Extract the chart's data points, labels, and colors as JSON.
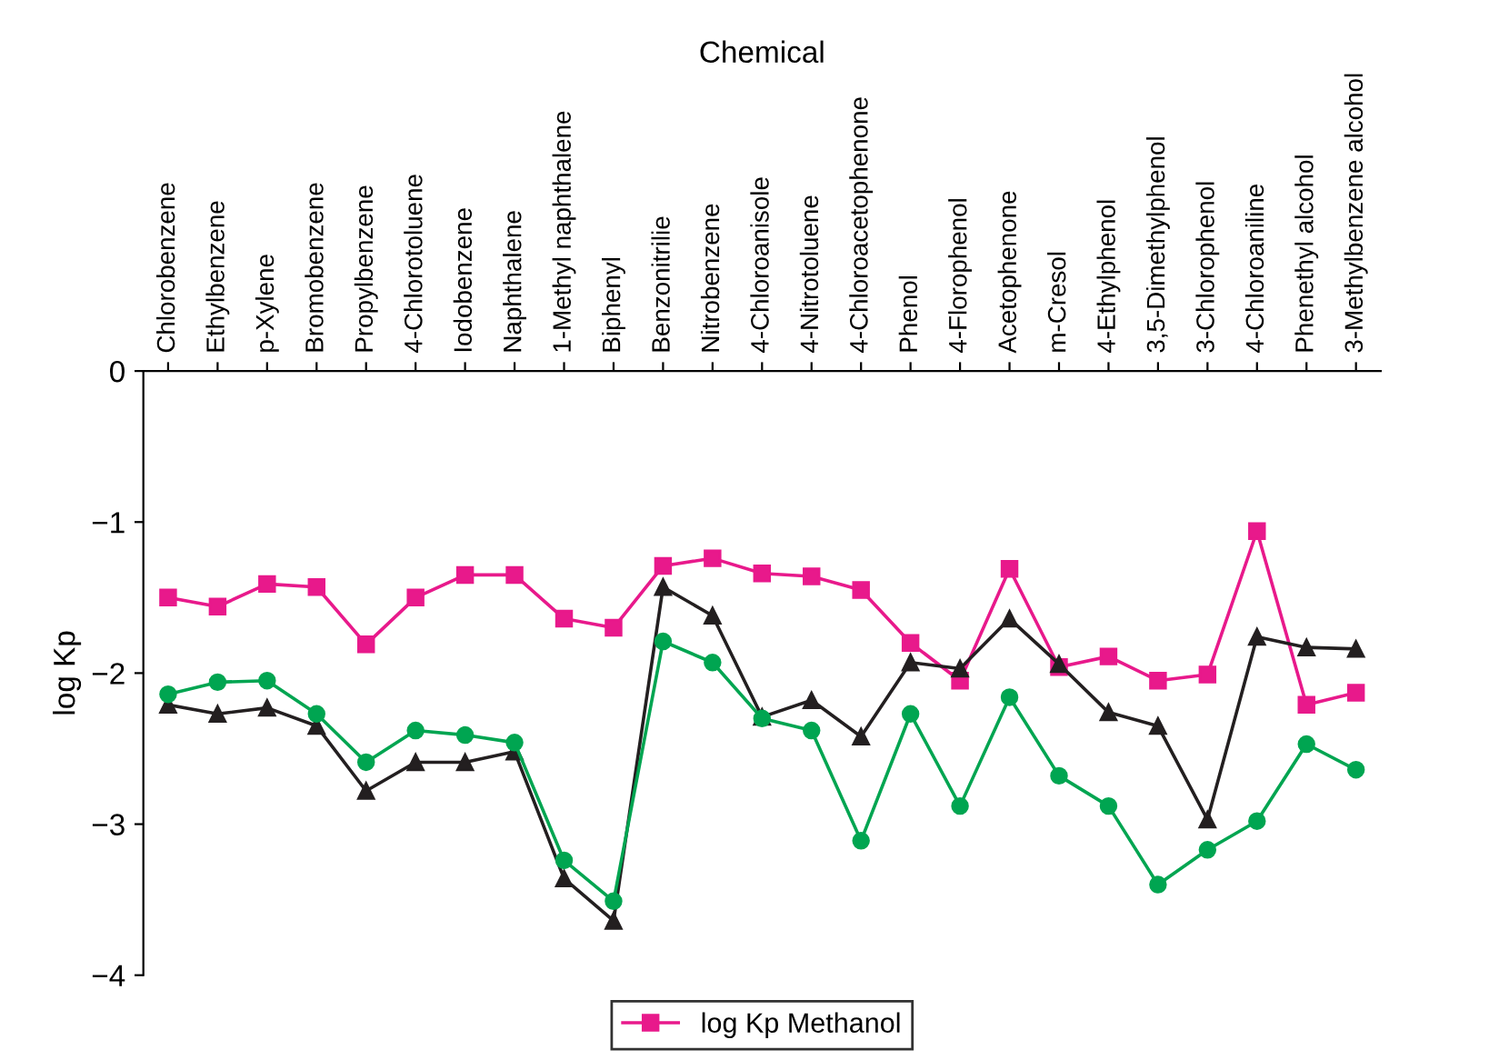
{
  "chart_data": {
    "type": "line",
    "xlabel": "Chemical",
    "ylabel": "log Kp",
    "categories": [
      "Chlorobenzene",
      "Ethylbenzene",
      "p-Xylene",
      "Bromobenzene",
      "Propylbenzene",
      "4-Chlorotoluene",
      "Iodobenzene",
      "Naphthalene",
      "1-Methyl naphthalene",
      "Biphenyl",
      "Benzonitrilie",
      "Nitrobenzene",
      "4-Chloroanisole",
      "4-Nitrotoluene",
      "4-Chloroacetophenone",
      "Phenol",
      "4-Florophenol",
      "Acetophenone",
      "m-Cresol",
      "4-Ethylphenol",
      "3,5-Dimethylphenol",
      "3-Chlorophenol",
      "4-Chloroaniline",
      "Phenethyl alcohol",
      "3-Methylbenzene alcohol"
    ],
    "series": [
      {
        "name": "log Kp Methanol",
        "color": "#e8198b",
        "marker": "square",
        "values": [
          -1.5,
          -1.56,
          -1.41,
          -1.43,
          -1.81,
          -1.5,
          -1.35,
          -1.35,
          -1.64,
          -1.7,
          -1.29,
          -1.24,
          -1.34,
          -1.36,
          -1.45,
          -1.8,
          -2.05,
          -1.31,
          -1.96,
          -1.89,
          -2.05,
          -2.01,
          -1.06,
          -2.21,
          -2.13
        ]
      },
      {
        "color": "#231f20",
        "marker": "triangle",
        "values": [
          -2.21,
          -2.27,
          -2.23,
          -2.35,
          -2.78,
          -2.59,
          -2.59,
          -2.52,
          -3.36,
          -3.64,
          -1.43,
          -1.62,
          -2.29,
          -2.18,
          -2.42,
          -1.93,
          -1.97,
          -1.64,
          -1.94,
          -2.26,
          -2.35,
          -2.97,
          -1.76,
          -1.83,
          -1.84
        ]
      },
      {
        "color": "#00a551",
        "marker": "circle",
        "values": [
          -2.14,
          -2.06,
          -2.05,
          -2.27,
          -2.59,
          -2.38,
          -2.41,
          -2.46,
          -3.24,
          -3.51,
          -1.79,
          -1.93,
          -2.3,
          -2.38,
          -3.11,
          -2.27,
          -2.88,
          -2.16,
          -2.68,
          -2.88,
          -3.4,
          -3.17,
          -2.98,
          -2.47,
          -2.64
        ]
      }
    ],
    "ylim": [
      -4,
      0
    ],
    "yticks": [
      0,
      {
        "value": -1,
        "label": "−1"
      },
      {
        "value": -2,
        "label": "−2"
      },
      {
        "value": -3,
        "label": "−3"
      },
      {
        "value": -4,
        "label": "−4"
      }
    ],
    "grid": false,
    "legend": "bottom",
    "line_style": "solid"
  }
}
